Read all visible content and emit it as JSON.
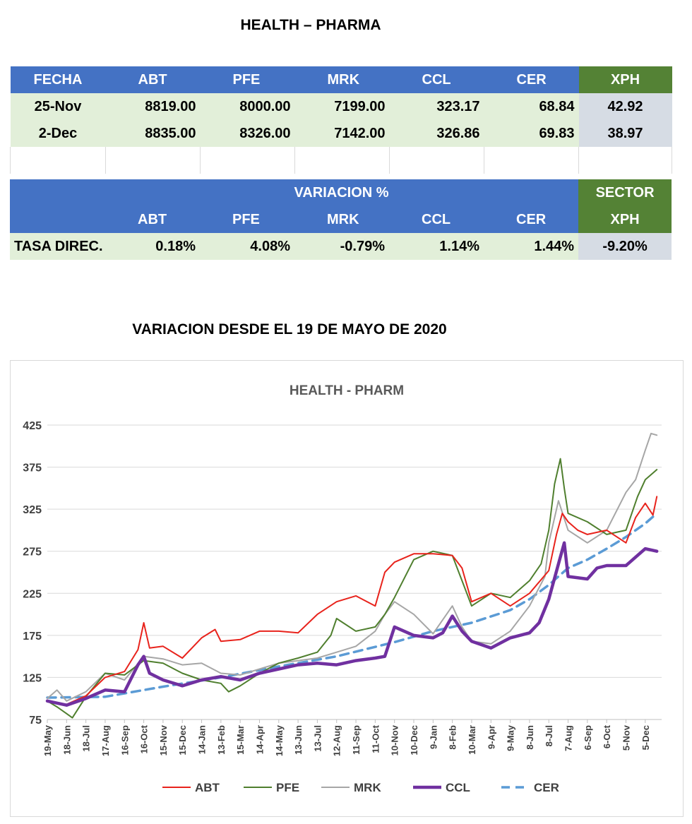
{
  "title": "HEALTH – PHARMA",
  "table1": {
    "headers": [
      "FECHA",
      "ABT",
      "PFE",
      "MRK",
      "CCL",
      "CER",
      "XPH"
    ],
    "rows": [
      [
        "25-Nov",
        "8819.00",
        "8000.00",
        "7199.00",
        "323.17",
        "68.84",
        "42.92"
      ],
      [
        "2-Dec",
        "8835.00",
        "8326.00",
        "7142.00",
        "326.86",
        "69.83",
        "38.97"
      ]
    ]
  },
  "table2": {
    "variacion_label": "VARIACION %",
    "sector_label": "SECTOR",
    "headers": [
      "",
      "ABT",
      "PFE",
      "MRK",
      "CCL",
      "CER",
      "XPH"
    ],
    "row": [
      "TASA DIREC.",
      "0.18%",
      "4.08%",
      "-0.79%",
      "1.14%",
      "1.44%",
      "-9.20%"
    ]
  },
  "subtitle": "VARIACION DESDE EL 19 DE MAYO DE 2020",
  "colors": {
    "ABT": "#e8231c",
    "PFE": "#4f7f2e",
    "MRK": "#a6a6a6",
    "CCL": "#7030a0",
    "CER": "#5b9bd5",
    "header_blue": "#4472c4",
    "header_green": "#548235"
  },
  "chart_data": {
    "type": "line",
    "title": "HEALTH - PHARM",
    "ylim": [
      75,
      425
    ],
    "yticks": [
      75,
      125,
      175,
      225,
      275,
      325,
      375,
      425
    ],
    "grid": true,
    "legend": "bottom",
    "categories": [
      "19-May",
      "18-Jun",
      "18-Jul",
      "17-Aug",
      "16-Sep",
      "16-Oct",
      "15-Nov",
      "15-Dec",
      "14-Jan",
      "13-Feb",
      "15-Mar",
      "14-Apr",
      "14-May",
      "13-Jun",
      "13-Jul",
      "12-Aug",
      "11-Sep",
      "11-Oct",
      "10-Nov",
      "10-Dec",
      "9-Jan",
      "8-Feb",
      "10-Mar",
      "9-Apr",
      "9-May",
      "8-Jun",
      "8-Jul",
      "7-Aug",
      "6-Sep",
      "6-Oct",
      "5-Nov",
      "5-Dec"
    ],
    "x_end": 31.85,
    "series": [
      {
        "name": "ABT",
        "points": [
          [
            0,
            97
          ],
          [
            1,
            93
          ],
          [
            2,
            103
          ],
          [
            3,
            125
          ],
          [
            4,
            132
          ],
          [
            4.7,
            158
          ],
          [
            5,
            190
          ],
          [
            5.3,
            160
          ],
          [
            6,
            162
          ],
          [
            7,
            148
          ],
          [
            8,
            172
          ],
          [
            8.7,
            182
          ],
          [
            9,
            168
          ],
          [
            10,
            170
          ],
          [
            11,
            180
          ],
          [
            12,
            180
          ],
          [
            13,
            178
          ],
          [
            14,
            200
          ],
          [
            15,
            215
          ],
          [
            16,
            222
          ],
          [
            17,
            210
          ],
          [
            17.5,
            250
          ],
          [
            18,
            262
          ],
          [
            19,
            272
          ],
          [
            20,
            272
          ],
          [
            21,
            270
          ],
          [
            21.5,
            255
          ],
          [
            22,
            215
          ],
          [
            23,
            225
          ],
          [
            24,
            210
          ],
          [
            25,
            225
          ],
          [
            26,
            252
          ],
          [
            26.4,
            295
          ],
          [
            26.7,
            320
          ],
          [
            27,
            310
          ],
          [
            27.5,
            300
          ],
          [
            28,
            295
          ],
          [
            29,
            300
          ],
          [
            30,
            285
          ],
          [
            30.5,
            315
          ],
          [
            31,
            332
          ],
          [
            31.4,
            318
          ],
          [
            31.6,
            340
          ]
        ]
      },
      {
        "name": "PFE",
        "points": [
          [
            0,
            97
          ],
          [
            0.5,
            90
          ],
          [
            1,
            82
          ],
          [
            1.3,
            77
          ],
          [
            2,
            102
          ],
          [
            3,
            130
          ],
          [
            4,
            128
          ],
          [
            5,
            145
          ],
          [
            6,
            142
          ],
          [
            7,
            130
          ],
          [
            8,
            122
          ],
          [
            9,
            118
          ],
          [
            9.4,
            108
          ],
          [
            10,
            115
          ],
          [
            11,
            130
          ],
          [
            12,
            142
          ],
          [
            13,
            148
          ],
          [
            14,
            155
          ],
          [
            14.7,
            175
          ],
          [
            15,
            195
          ],
          [
            16,
            180
          ],
          [
            17,
            185
          ],
          [
            17.5,
            200
          ],
          [
            18,
            220
          ],
          [
            19,
            265
          ],
          [
            20,
            275
          ],
          [
            21,
            270
          ],
          [
            21.5,
            240
          ],
          [
            22,
            210
          ],
          [
            23,
            225
          ],
          [
            24,
            220
          ],
          [
            25,
            240
          ],
          [
            25.6,
            260
          ],
          [
            26,
            300
          ],
          [
            26.3,
            355
          ],
          [
            26.6,
            385
          ],
          [
            26.8,
            350
          ],
          [
            27,
            320
          ],
          [
            28,
            310
          ],
          [
            29,
            295
          ],
          [
            30,
            300
          ],
          [
            30.6,
            340
          ],
          [
            31,
            360
          ],
          [
            31.6,
            372
          ]
        ]
      },
      {
        "name": "MRK",
        "points": [
          [
            0,
            100
          ],
          [
            0.5,
            110
          ],
          [
            1,
            97
          ],
          [
            2,
            108
          ],
          [
            3,
            130
          ],
          [
            4,
            122
          ],
          [
            5,
            150
          ],
          [
            6,
            147
          ],
          [
            7,
            140
          ],
          [
            8,
            142
          ],
          [
            9,
            130
          ],
          [
            10,
            128
          ],
          [
            11,
            135
          ],
          [
            12,
            142
          ],
          [
            13,
            145
          ],
          [
            14,
            148
          ],
          [
            15,
            155
          ],
          [
            16,
            162
          ],
          [
            17,
            180
          ],
          [
            17.5,
            200
          ],
          [
            18,
            215
          ],
          [
            19,
            200
          ],
          [
            20,
            177
          ],
          [
            21,
            210
          ],
          [
            21.5,
            185
          ],
          [
            22,
            168
          ],
          [
            23,
            165
          ],
          [
            24,
            180
          ],
          [
            25,
            210
          ],
          [
            25.8,
            245
          ],
          [
            26,
            285
          ],
          [
            26.5,
            335
          ],
          [
            27,
            300
          ],
          [
            28,
            285
          ],
          [
            29,
            300
          ],
          [
            30,
            345
          ],
          [
            30.5,
            360
          ],
          [
            31,
            395
          ],
          [
            31.3,
            415
          ],
          [
            31.6,
            413
          ]
        ]
      },
      {
        "name": "CCL",
        "points": [
          [
            0,
            97
          ],
          [
            1,
            92
          ],
          [
            2,
            100
          ],
          [
            3,
            110
          ],
          [
            4,
            108
          ],
          [
            4.7,
            140
          ],
          [
            5,
            150
          ],
          [
            5.3,
            130
          ],
          [
            6,
            122
          ],
          [
            7,
            115
          ],
          [
            8,
            122
          ],
          [
            9,
            126
          ],
          [
            10,
            122
          ],
          [
            11,
            130
          ],
          [
            12,
            135
          ],
          [
            13,
            140
          ],
          [
            14,
            142
          ],
          [
            15,
            140
          ],
          [
            16,
            145
          ],
          [
            17,
            148
          ],
          [
            17.5,
            150
          ],
          [
            18,
            185
          ],
          [
            19,
            175
          ],
          [
            20,
            172
          ],
          [
            20.5,
            178
          ],
          [
            21,
            198
          ],
          [
            21.5,
            180
          ],
          [
            22,
            168
          ],
          [
            23,
            160
          ],
          [
            24,
            172
          ],
          [
            25,
            178
          ],
          [
            25.5,
            190
          ],
          [
            26,
            218
          ],
          [
            26.5,
            260
          ],
          [
            26.8,
            285
          ],
          [
            27,
            245
          ],
          [
            28,
            242
          ],
          [
            28.5,
            255
          ],
          [
            29,
            258
          ],
          [
            30,
            258
          ],
          [
            30.5,
            268
          ],
          [
            31,
            278
          ],
          [
            31.6,
            275
          ]
        ]
      },
      {
        "name": "CER",
        "points": [
          [
            0,
            101
          ],
          [
            3,
            102
          ],
          [
            6,
            114
          ],
          [
            9,
            125
          ],
          [
            12,
            138
          ],
          [
            15,
            150
          ],
          [
            18,
            167
          ],
          [
            20,
            180
          ],
          [
            22,
            190
          ],
          [
            24,
            205
          ],
          [
            25,
            218
          ],
          [
            26,
            235
          ],
          [
            27,
            255
          ],
          [
            28,
            265
          ],
          [
            29,
            278
          ],
          [
            30,
            292
          ],
          [
            31,
            308
          ],
          [
            31.6,
            320
          ]
        ]
      }
    ]
  }
}
